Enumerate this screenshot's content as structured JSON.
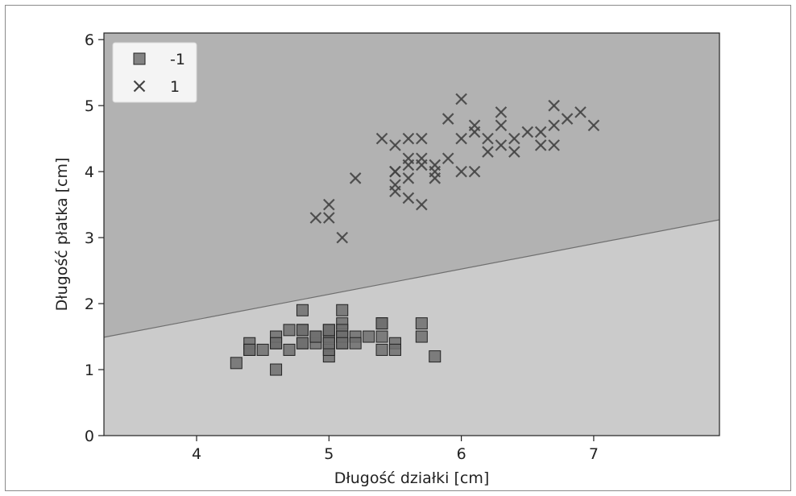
{
  "chart_data": {
    "type": "scatter",
    "xlabel": "Długość działki [cm]",
    "ylabel": "Długość płatka [cm]",
    "xlim": [
      3.3,
      7.95
    ],
    "ylim": [
      0,
      6.1
    ],
    "xticks": [
      4,
      5,
      6,
      7
    ],
    "yticks": [
      0,
      1,
      2,
      3,
      4,
      5,
      6
    ],
    "grid": false,
    "legend_position": "top-left",
    "decision_boundary": {
      "points": [
        [
          3.3,
          1.49
        ],
        [
          7.95,
          3.27
        ]
      ],
      "above_region_color": "#b2b2b2",
      "below_region_color": "#cbcbcb",
      "line_color": "#6f6f6f"
    },
    "series": [
      {
        "name": "-1",
        "marker": "square",
        "color": "#6e6e6e",
        "points": [
          [
            4.3,
            1.1
          ],
          [
            4.4,
            1.4
          ],
          [
            4.4,
            1.3
          ],
          [
            4.4,
            1.3
          ],
          [
            4.5,
            1.3
          ],
          [
            4.6,
            1.0
          ],
          [
            4.6,
            1.4
          ],
          [
            4.6,
            1.5
          ],
          [
            4.6,
            1.4
          ],
          [
            4.7,
            1.3
          ],
          [
            4.7,
            1.6
          ],
          [
            4.8,
            1.9
          ],
          [
            4.8,
            1.6
          ],
          [
            4.8,
            1.4
          ],
          [
            4.8,
            1.4
          ],
          [
            4.8,
            1.6
          ],
          [
            4.9,
            1.4
          ],
          [
            4.9,
            1.5
          ],
          [
            4.9,
            1.5
          ],
          [
            5.0,
            1.4
          ],
          [
            5.0,
            1.5
          ],
          [
            5.0,
            1.6
          ],
          [
            5.0,
            1.2
          ],
          [
            5.0,
            1.3
          ],
          [
            5.0,
            1.4
          ],
          [
            5.0,
            1.6
          ],
          [
            5.1,
            1.9
          ],
          [
            5.1,
            1.7
          ],
          [
            5.1,
            1.6
          ],
          [
            5.1,
            1.5
          ],
          [
            5.1,
            1.4
          ],
          [
            5.1,
            1.5
          ],
          [
            5.1,
            1.4
          ],
          [
            5.2,
            1.5
          ],
          [
            5.2,
            1.4
          ],
          [
            5.3,
            1.5
          ],
          [
            5.4,
            1.7
          ],
          [
            5.4,
            1.5
          ],
          [
            5.4,
            1.3
          ],
          [
            5.4,
            1.7
          ],
          [
            5.5,
            1.4
          ],
          [
            5.5,
            1.3
          ],
          [
            5.7,
            1.7
          ],
          [
            5.7,
            1.5
          ],
          [
            5.8,
            1.2
          ]
        ]
      },
      {
        "name": "1",
        "marker": "x",
        "color": "#444444",
        "points": [
          [
            4.9,
            3.3
          ],
          [
            5.0,
            3.5
          ],
          [
            5.0,
            3.3
          ],
          [
            5.1,
            3.0
          ],
          [
            5.2,
            3.9
          ],
          [
            5.4,
            4.5
          ],
          [
            5.5,
            4.0
          ],
          [
            5.5,
            4.4
          ],
          [
            5.5,
            3.8
          ],
          [
            5.5,
            3.7
          ],
          [
            5.5,
            4.0
          ],
          [
            5.6,
            4.5
          ],
          [
            5.6,
            3.6
          ],
          [
            5.6,
            4.2
          ],
          [
            5.6,
            3.9
          ],
          [
            5.6,
            4.1
          ],
          [
            5.7,
            4.5
          ],
          [
            5.7,
            3.5
          ],
          [
            5.7,
            4.2
          ],
          [
            5.7,
            4.1
          ],
          [
            5.8,
            4.1
          ],
          [
            5.8,
            4.0
          ],
          [
            5.8,
            3.9
          ],
          [
            5.9,
            4.8
          ],
          [
            5.9,
            4.2
          ],
          [
            6.0,
            4.5
          ],
          [
            6.0,
            5.1
          ],
          [
            6.0,
            4.0
          ],
          [
            6.1,
            4.7
          ],
          [
            6.1,
            4.6
          ],
          [
            6.1,
            4.0
          ],
          [
            6.2,
            4.5
          ],
          [
            6.2,
            4.3
          ],
          [
            6.3,
            4.9
          ],
          [
            6.3,
            4.7
          ],
          [
            6.3,
            4.4
          ],
          [
            6.4,
            4.5
          ],
          [
            6.4,
            4.3
          ],
          [
            6.5,
            4.6
          ],
          [
            6.6,
            4.6
          ],
          [
            6.6,
            4.4
          ],
          [
            6.7,
            5.0
          ],
          [
            6.7,
            4.7
          ],
          [
            6.7,
            4.4
          ],
          [
            6.8,
            4.8
          ],
          [
            6.9,
            4.9
          ],
          [
            7.0,
            4.7
          ]
        ]
      }
    ]
  }
}
